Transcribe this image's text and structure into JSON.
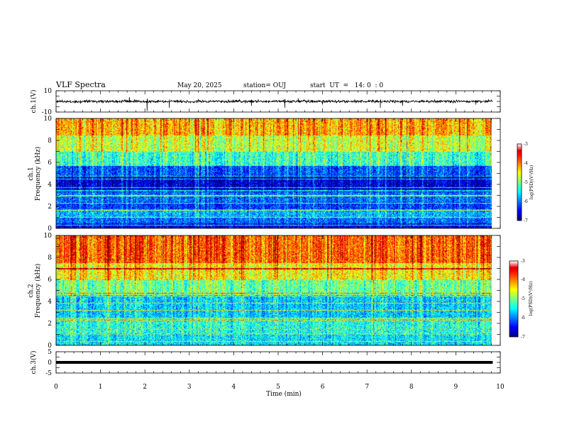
{
  "header": {
    "title": "VLF Spectra",
    "date": "May 20, 2025",
    "station": "station= OUJ",
    "start": "start  UT  =   14: 0  : 0"
  },
  "colorbar": {
    "label": "log(PSD)(V²/Hz)",
    "ticks": [
      "-3",
      "-4",
      "-5",
      "-6",
      "-7"
    ],
    "range": [
      -7,
      -3
    ]
  },
  "chart_data": [
    {
      "type": "line",
      "name": "ch1-waveform",
      "ylabel": "ch.1(V)",
      "ylim": [
        -10,
        10
      ],
      "yticks": [
        "10",
        "-10"
      ],
      "xlim": [
        0,
        10
      ],
      "x_data_max": 9.83,
      "baseline": 0,
      "spikes": [
        [
          0.55,
          -2
        ],
        [
          1.65,
          4
        ],
        [
          2.05,
          -9
        ],
        [
          2.55,
          -6
        ],
        [
          4.4,
          -4
        ],
        [
          5.15,
          -6
        ],
        [
          5.45,
          3
        ],
        [
          6.0,
          -3
        ],
        [
          7.3,
          -6
        ],
        [
          7.8,
          -4
        ],
        [
          9.45,
          -3
        ]
      ],
      "color": "#000000"
    },
    {
      "type": "heatmap",
      "name": "ch1-spectrogram",
      "ylabel": "ch.1\nFrequency (kHz)",
      "ylim": [
        0,
        10
      ],
      "yticks": [
        "10",
        "8",
        "6",
        "4",
        "2",
        "0"
      ],
      "xlim": [
        0,
        10
      ],
      "x_data_max": 9.83,
      "bands": [
        {
          "f": [
            0,
            0.5
          ],
          "level": -6.6
        },
        {
          "f": [
            0.5,
            1.0
          ],
          "level": -6.1
        },
        {
          "f": [
            1.0,
            1.8
          ],
          "level": -5.8
        },
        {
          "f": [
            1.8,
            2.4
          ],
          "level": -6.3
        },
        {
          "f": [
            2.4,
            3.3
          ],
          "level": -6.1
        },
        {
          "f": [
            3.3,
            4.8
          ],
          "level": -6.7
        },
        {
          "f": [
            4.8,
            5.7
          ],
          "level": -6.2
        },
        {
          "f": [
            5.7,
            7.0
          ],
          "level": -5.3
        },
        {
          "f": [
            7.0,
            8.5
          ],
          "level": -4.7
        },
        {
          "f": [
            8.5,
            10.0
          ],
          "level": -4.2
        }
      ],
      "lines_khz": [
        0.35,
        1.05,
        1.7,
        2.35,
        3.0,
        3.45,
        3.75,
        4.5,
        4.75
      ]
    },
    {
      "type": "heatmap",
      "name": "ch2-spectrogram",
      "ylabel": "ch.2\nFrequency (kHz)",
      "ylim": [
        0,
        10
      ],
      "yticks": [
        "10",
        "8",
        "6",
        "4",
        "2",
        "0"
      ],
      "xlim": [
        0,
        10
      ],
      "x_data_max": 9.83,
      "bands": [
        {
          "f": [
            0,
            1.0
          ],
          "level": -5.6
        },
        {
          "f": [
            1.0,
            2.5
          ],
          "level": -5.4
        },
        {
          "f": [
            2.5,
            4.5
          ],
          "level": -5.7
        },
        {
          "f": [
            4.5,
            6.0
          ],
          "level": -5.1
        },
        {
          "f": [
            6.0,
            7.5
          ],
          "level": -4.5
        },
        {
          "f": [
            7.5,
            10.0
          ],
          "level": -3.9
        }
      ],
      "lines_khz": [
        0.4,
        1.1,
        1.5,
        2.3,
        2.5,
        3.2,
        3.9,
        4.6,
        4.8,
        7.0
      ]
    },
    {
      "type": "line",
      "name": "ch3-waveform",
      "ylabel": "ch.3(V)",
      "ylim": [
        -5,
        5
      ],
      "yticks": [
        "5",
        "0",
        "-5"
      ],
      "xlim": [
        0,
        10
      ],
      "x_data_max": 9.83,
      "baseline": 0,
      "color": "#000000"
    }
  ],
  "xaxis": {
    "label": "Time (min)",
    "ticks": [
      "0",
      "1",
      "2",
      "3",
      "4",
      "5",
      "6",
      "7",
      "8",
      "9",
      "10"
    ]
  }
}
